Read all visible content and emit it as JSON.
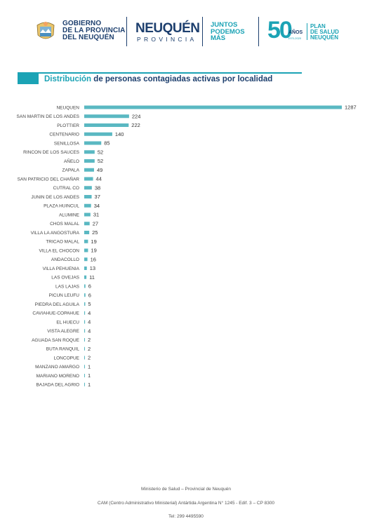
{
  "header": {
    "gov_line1": "GOBIERNO",
    "gov_line2": "DE LA PROVINCIA",
    "gov_line3": "DEL NEUQUÉN",
    "neuquen": "NEUQUÉN",
    "provincia": "PROVINCIA",
    "juntos_line1": "JUNTOS",
    "juntos_line2": "PODEMOS",
    "juntos_line3": "MÁS",
    "fifty": "50",
    "anos": "AÑOS",
    "anos_years": "1970-2020",
    "plan_line1": "PLAN",
    "plan_line2": "DE SALUD",
    "plan_line3": "NEUQUÉN"
  },
  "title": {
    "highlight": "Distribución",
    "rest": " de personas contagiadas activas por localidad"
  },
  "colors": {
    "bar": "#5ab8c2",
    "accent": "#1ba3b5",
    "navy": "#1d3f6e"
  },
  "chart_data": {
    "type": "bar",
    "orientation": "horizontal",
    "categories": [
      "NEUQUEN",
      "SAN MARTIN DE LOS ANDES",
      "PLOTTIER",
      "CENTENARIO",
      "SENILLOSA",
      "RINCON DE LOS SAUCES",
      "AÑELO",
      "ZAPALA",
      "SAN PATRICIO DEL CHAÑAR",
      "CUTRAL CO",
      "JUNIN DE LOS ANDES",
      "PLAZA HUINCUL",
      "ALUMINE",
      "CHOS MALAL",
      "VILLA LA ANGOSTURA",
      "TRICAO MALAL",
      "VILLA EL CHOCON",
      "ANDACOLLO",
      "VILLA PEHUENIA",
      "LAS OVEJAS",
      "LAS LAJAS",
      "PICUN LEUFU",
      "PIEDRA DEL AGUILA",
      "CAVIAHUE-COPAHUE",
      "EL HUECU",
      "VISTA ALEGRE",
      "AGUADA SAN ROQUE",
      "BUTA RANQUIL",
      "LONCOPUE",
      "MANZANO AMARGO",
      "MARIANO MORENO",
      "BAJADA DEL AGRIO"
    ],
    "values": [
      1287,
      224,
      222,
      140,
      85,
      52,
      52,
      49,
      44,
      38,
      37,
      34,
      31,
      27,
      25,
      19,
      19,
      16,
      13,
      11,
      6,
      6,
      5,
      4,
      4,
      4,
      2,
      2,
      2,
      1,
      1,
      1
    ],
    "xlim": [
      0,
      1287
    ],
    "grid": false,
    "legend": "none"
  },
  "footer": {
    "line1": "Ministerio de Salud – Provincial de Neuquén",
    "line2": "CAM (Centro Administrativo Ministerial) Antártida Argentina N° 1245  - Edif. 3 – CP 8300",
    "line3": "Tel: 299 4495590"
  }
}
